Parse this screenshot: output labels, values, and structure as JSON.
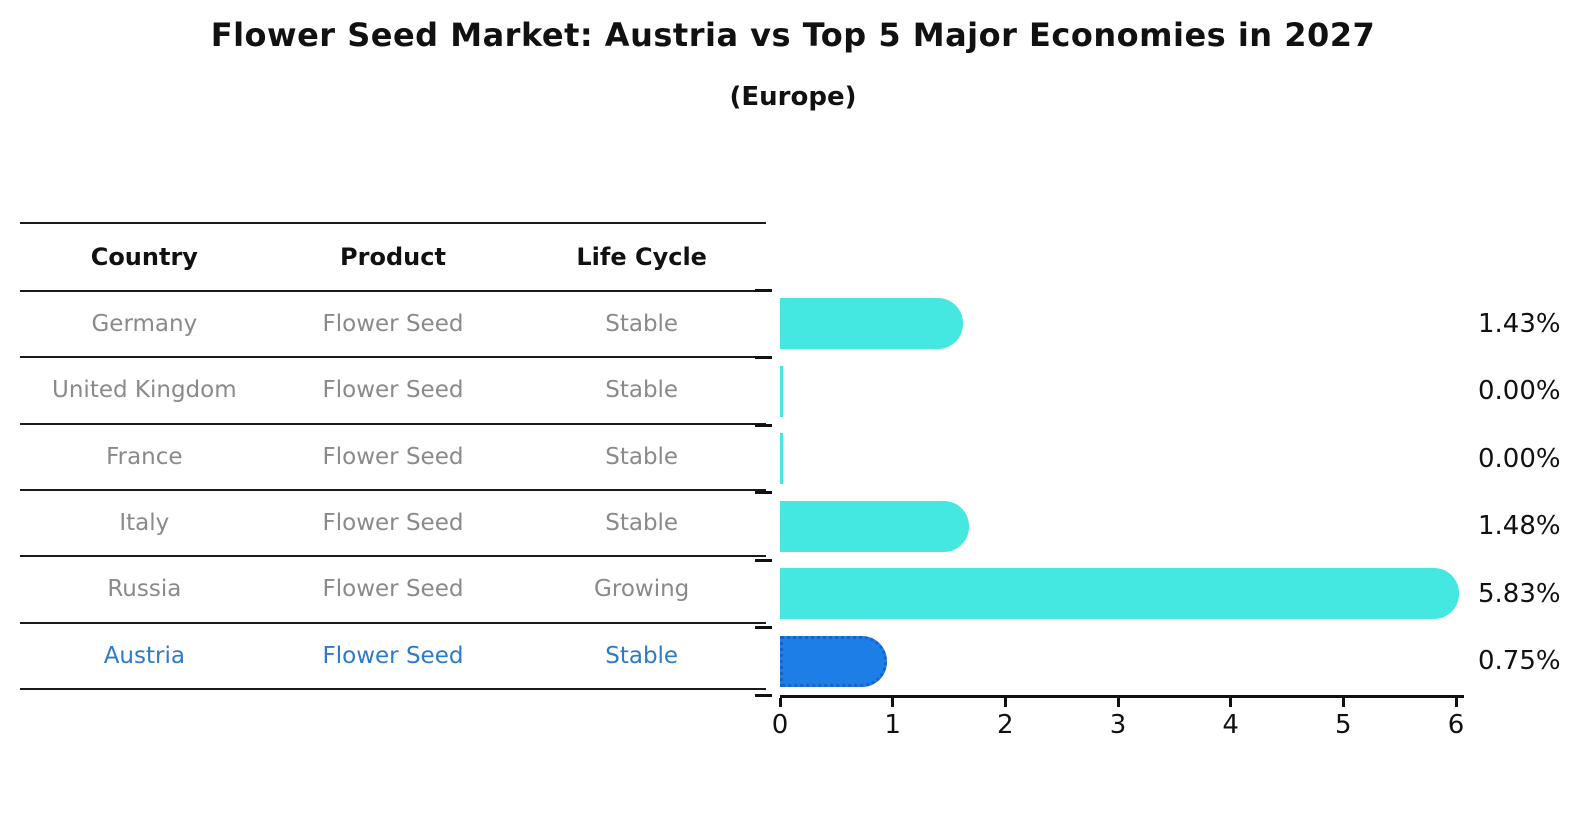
{
  "title": "Flower Seed Market: Austria vs Top 5 Major Economies in 2027",
  "subtitle": "(Europe)",
  "table": {
    "headers": [
      "Country",
      "Product",
      "Life Cycle"
    ],
    "rows": [
      {
        "country": "Germany",
        "product": "Flower Seed",
        "life_cycle": "Stable",
        "highlight": false
      },
      {
        "country": "United Kingdom",
        "product": "Flower Seed",
        "life_cycle": "Stable",
        "highlight": false
      },
      {
        "country": "France",
        "product": "Flower Seed",
        "life_cycle": "Stable",
        "highlight": false
      },
      {
        "country": "Italy",
        "product": "Flower Seed",
        "life_cycle": "Stable",
        "highlight": false
      },
      {
        "country": "Russia",
        "product": "Flower Seed",
        "life_cycle": "Growing",
        "highlight": false
      },
      {
        "country": "Austria",
        "product": "Flower Seed",
        "life_cycle": "Stable",
        "highlight": true
      }
    ]
  },
  "chart_data": {
    "type": "bar",
    "orientation": "horizontal",
    "title": "Flower Seed Market: Austria vs Top 5 Major Economies in 2027 (Europe)",
    "categories": [
      "Germany",
      "United Kingdom",
      "France",
      "Italy",
      "Russia",
      "Austria"
    ],
    "values": [
      1.43,
      0.0,
      0.0,
      1.48,
      5.83,
      0.75
    ],
    "value_labels": [
      "1.43%",
      "0.00%",
      "0.00%",
      "1.48%",
      "5.83%",
      "0.75%"
    ],
    "xlabel": "",
    "ylabel": "",
    "xlim": [
      0,
      6
    ],
    "x_ticks": [
      0,
      1,
      2,
      3,
      4,
      5,
      6
    ],
    "grid": false,
    "legend": false,
    "bar_color": "#45E8E0",
    "highlight_index": 5,
    "highlight_bar_color": "#1E7EE8",
    "highlight_bar_edge_color": "#1565C8",
    "highlight_text_color": "#2B7BCA",
    "axis_color": "#111111"
  }
}
